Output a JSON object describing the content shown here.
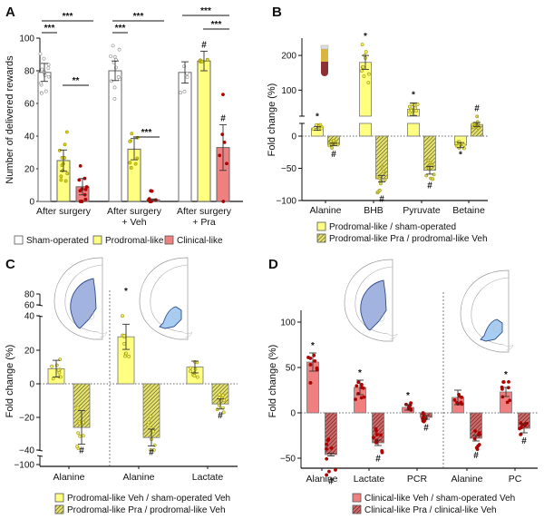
{
  "colors": {
    "sham": "#ffffff",
    "prodromal": "#ffff80",
    "prodromal_dot": "#d9d21c",
    "clinical": "#f08080",
    "clinical_dot": "#b00000",
    "clinical_hatch": "#c55d5d",
    "prodromal_hatch": "#c9c45a",
    "brain_dark": "#a3b3e0",
    "brain_light": "#a7cdf2",
    "tube_top": "#d9b640",
    "tube_bottom": "#8e2f33"
  },
  "chart_data": [
    {
      "panel": "A",
      "type": "bar",
      "ylabel": "Number of delivered rewards",
      "ylim": [
        0,
        100
      ],
      "yticks": [
        0,
        20,
        40,
        60,
        80,
        100
      ],
      "categories": [
        "After surgery",
        "After surgery\n+ Veh",
        "After surgery\n+ Pra"
      ],
      "series": [
        {
          "name": "Sham-operated",
          "values": [
            79,
            80,
            79
          ],
          "errors": [
            5.5,
            6,
            6.5
          ]
        },
        {
          "name": "Prodromal-like",
          "values": [
            25,
            32,
            86
          ],
          "errors": [
            6.5,
            6.5,
            6
          ]
        },
        {
          "name": "Clinical-like",
          "values": [
            9,
            1,
            33
          ],
          "errors": [
            5,
            0.5,
            14
          ]
        }
      ],
      "significance": [
        {
          "group": 0,
          "pair": "sham-clinical",
          "label": "***"
        },
        {
          "group": 0,
          "pair": "sham-prodromal",
          "label": "***"
        },
        {
          "group": 0,
          "pair": "prodromal-clinical",
          "label": "**"
        },
        {
          "group": 1,
          "pair": "sham-clinical",
          "label": "***"
        },
        {
          "group": 1,
          "pair": "sham-prodromal",
          "label": "***"
        },
        {
          "group": 1,
          "pair": "prodromal-clinical",
          "label": "***"
        },
        {
          "group": 2,
          "pair": "sham-clinical",
          "label": "***"
        },
        {
          "group": 2,
          "pair": "prodromal-clinical",
          "label": "***"
        }
      ],
      "hash_marks": [
        {
          "group": 2,
          "series": 1,
          "label": "#"
        },
        {
          "group": 2,
          "series": 2,
          "label": "#"
        }
      ],
      "legend": [
        "Sham-operated",
        "Prodromal-like",
        "Clinical-like"
      ]
    },
    {
      "panel": "B",
      "type": "bar",
      "ylabel": "Fold change (%)",
      "yticks": [
        -100,
        -50,
        0,
        100,
        200
      ],
      "ylim": [
        -100,
        250
      ],
      "axis_break": [
        20,
        30
      ],
      "categories": [
        "Alanine",
        "BHB",
        "Pyruvate",
        "Betaine"
      ],
      "series": [
        {
          "name": "Prodromal-like / sham-operated",
          "values": [
            12,
            180,
            45,
            -14
          ],
          "errors": [
            3,
            20,
            18,
            4
          ],
          "marks": [
            "*",
            "*",
            "*",
            "*"
          ]
        },
        {
          "name": "Prodromal-like Pra / prodromal-like Veh",
          "values": [
            -13,
            -66,
            -53,
            18
          ],
          "errors": [
            2,
            5,
            6,
            3
          ],
          "marks": [
            "#",
            "#",
            "#",
            "#"
          ]
        }
      ],
      "legend": [
        "Prodromal-like / sham-operated",
        "Prodromal-like Pra / prodromal-like Veh"
      ]
    },
    {
      "panel": "C",
      "type": "bar",
      "ylabel": "Fold change (%)",
      "yticks": [
        -100,
        -40,
        -20,
        0,
        20,
        40,
        60,
        80
      ],
      "categories": [
        "Alanine",
        "Alanine",
        "Lactate"
      ],
      "regions": [
        "dark-blue region",
        "light-blue region"
      ],
      "series": [
        {
          "name": "Prodromal-like Veh / sham-operated Veh",
          "values": [
            9,
            28,
            10
          ],
          "errors": [
            5,
            7.5,
            3.5
          ],
          "marks": [
            "",
            "*",
            ""
          ]
        },
        {
          "name": "Prodromal-like  Pra / prodromal-like Veh",
          "values": [
            -26,
            -32,
            -12
          ],
          "errors": [
            10,
            5,
            3
          ],
          "marks": [
            "#",
            "#",
            "#"
          ]
        }
      ],
      "legend": [
        "Prodromal-like Veh / sham-operated Veh",
        "Prodromal-like  Pra / prodromal-like Veh"
      ]
    },
    {
      "panel": "D",
      "type": "bar",
      "ylabel": "Fold change (%)",
      "ylim": [
        -55,
        110
      ],
      "yticks": [
        -50,
        0,
        50,
        100
      ],
      "categories": [
        "Alanine",
        "Lactate",
        "PCR",
        "Alanine",
        "PC"
      ],
      "series": [
        {
          "name": "Clinical-like Veh / sham-operated Veh",
          "values": [
            56,
            28,
            6,
            17,
            23
          ],
          "errors": [
            10,
            8,
            3,
            8,
            5
          ],
          "marks": [
            "*",
            "*",
            "*",
            "",
            "*"
          ]
        },
        {
          "name": "Clinical-like Pra / clinical-like Veh",
          "values": [
            -46,
            -33,
            -5,
            -28,
            -17
          ],
          "errors": [
            1.5,
            3,
            2,
            3,
            5
          ],
          "marks": [
            "#",
            "#",
            "#",
            "#",
            "#"
          ]
        }
      ],
      "legend": [
        "Clinical-like Veh / sham-operated Veh",
        "Clinical-like Pra / clinical-like Veh"
      ]
    }
  ],
  "panels": {
    "A": {
      "label": "A"
    },
    "B": {
      "label": "B"
    },
    "C": {
      "label": "C"
    },
    "D": {
      "label": "D"
    }
  }
}
